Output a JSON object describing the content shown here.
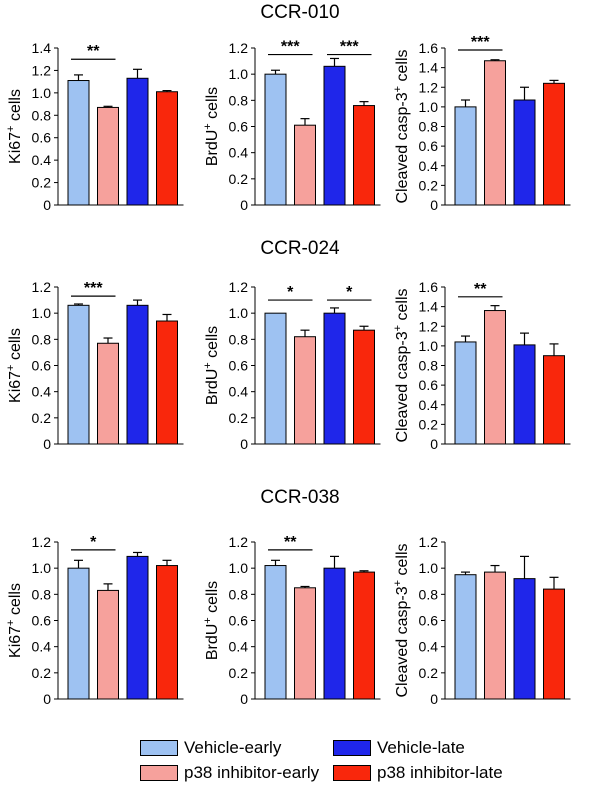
{
  "colors": {
    "vehicle_early": "#9ec2f2",
    "p38_early": "#f6a19c",
    "vehicle_late": "#1f26ea",
    "p38_late": "#f9270c"
  },
  "legend": {
    "vehicle_early": "Vehicle-early",
    "p38_early": "p38 inhibitor-early",
    "vehicle_late": "Vehicle-late",
    "p38_late": "p38 inhibitor-late"
  },
  "rows": [
    {
      "title": "CCR-010"
    },
    {
      "title": "CCR-024"
    },
    {
      "title": "CCR-038"
    }
  ],
  "chart_data": [
    {
      "type": "bar",
      "title": "CCR-010",
      "ylabel": "Ki67+ cells",
      "ylabel_main": "Ki67",
      "ylabel_sup": "+",
      "ylabel_tail": " cells",
      "ylim": [
        0,
        1.4
      ],
      "yticks": [
        "0",
        "0.2",
        "0.4",
        "0.6",
        "0.8",
        "1.0",
        "1.2",
        "1.4"
      ],
      "values": [
        1.11,
        0.87,
        1.13,
        1.01
      ],
      "errors": [
        0.05,
        0.01,
        0.08,
        0.01
      ],
      "sig": [
        {
          "from": 0,
          "to": 1,
          "label": "**",
          "y": 1.3
        }
      ]
    },
    {
      "type": "bar",
      "title": "CCR-010",
      "ylabel": "BrdU+ cells",
      "ylabel_main": "BrdU",
      "ylabel_sup": "+",
      "ylabel_tail": " cells",
      "ylim": [
        0,
        1.2
      ],
      "yticks": [
        "0",
        "0.2",
        "0.4",
        "0.6",
        "0.8",
        "1.0",
        "1.2"
      ],
      "values": [
        1.0,
        0.61,
        1.06,
        0.76
      ],
      "errors": [
        0.03,
        0.05,
        0.06,
        0.03
      ],
      "sig": [
        {
          "from": 0,
          "to": 1,
          "label": "***",
          "y": 1.15
        },
        {
          "from": 2,
          "to": 3,
          "label": "***",
          "y": 1.15
        }
      ]
    },
    {
      "type": "bar",
      "title": "CCR-010",
      "ylabel": "Cleaved casp-3+ cells",
      "ylabel_main": "Cleaved casp-3",
      "ylabel_sup": "+",
      "ylabel_tail": " cells",
      "ylim": [
        0,
        1.6
      ],
      "yticks": [
        "0",
        "0.2",
        "0.4",
        "0.6",
        "0.8",
        "1.0",
        "1.2",
        "1.4",
        "1.6"
      ],
      "values": [
        1.0,
        1.47,
        1.07,
        1.24
      ],
      "errors": [
        0.07,
        0.01,
        0.13,
        0.03
      ],
      "sig": [
        {
          "from": 0,
          "to": 1,
          "label": "***",
          "y": 1.58
        }
      ]
    },
    {
      "type": "bar",
      "title": "CCR-024",
      "ylabel": "Ki67+ cells",
      "ylabel_main": "Ki67",
      "ylabel_sup": "+",
      "ylabel_tail": " cells",
      "ylim": [
        0,
        1.2
      ],
      "yticks": [
        "0",
        "0.2",
        "0.4",
        "0.6",
        "0.8",
        "1.0",
        "1.2"
      ],
      "values": [
        1.06,
        0.77,
        1.06,
        0.94
      ],
      "errors": [
        0.01,
        0.04,
        0.04,
        0.05
      ],
      "sig": [
        {
          "from": 0,
          "to": 1,
          "label": "***",
          "y": 1.13
        }
      ]
    },
    {
      "type": "bar",
      "title": "CCR-024",
      "ylabel": "BrdU+ cells",
      "ylabel_main": "BrdU",
      "ylabel_sup": "+",
      "ylabel_tail": " cells",
      "ylim": [
        0,
        1.2
      ],
      "yticks": [
        "0",
        "0.2",
        "0.4",
        "0.6",
        "0.8",
        "1.0",
        "1.2"
      ],
      "values": [
        1.0,
        0.82,
        1.0,
        0.87
      ],
      "errors": [
        0.0,
        0.05,
        0.04,
        0.03
      ],
      "sig": [
        {
          "from": 0,
          "to": 1,
          "label": "*",
          "y": 1.1
        },
        {
          "from": 2,
          "to": 3,
          "label": "*",
          "y": 1.1
        }
      ]
    },
    {
      "type": "bar",
      "title": "CCR-024",
      "ylabel": "Cleaved casp-3+ cells",
      "ylabel_main": "Cleaved casp-3",
      "ylabel_sup": "+",
      "ylabel_tail": " cells",
      "ylim": [
        0,
        1.6
      ],
      "yticks": [
        "0",
        "0.2",
        "0.4",
        "0.6",
        "0.8",
        "1.0",
        "1.2",
        "1.4",
        "1.6"
      ],
      "values": [
        1.04,
        1.36,
        1.01,
        0.9
      ],
      "errors": [
        0.06,
        0.05,
        0.12,
        0.12
      ],
      "sig": [
        {
          "from": 0,
          "to": 1,
          "label": "**",
          "y": 1.5
        }
      ]
    },
    {
      "type": "bar",
      "title": "CCR-038",
      "ylabel": "Ki67+ cells",
      "ylabel_main": "Ki67",
      "ylabel_sup": "+",
      "ylabel_tail": " cells",
      "ylim": [
        0,
        1.2
      ],
      "yticks": [
        "0",
        "0.2",
        "0.4",
        "0.6",
        "0.8",
        "1.0",
        "1.2"
      ],
      "values": [
        1.0,
        0.83,
        1.09,
        1.02
      ],
      "errors": [
        0.06,
        0.05,
        0.03,
        0.04
      ],
      "sig": [
        {
          "from": 0,
          "to": 1,
          "label": "*",
          "y": 1.14
        }
      ]
    },
    {
      "type": "bar",
      "title": "CCR-038",
      "ylabel": "BrdU+ cells",
      "ylabel_main": "BrdU",
      "ylabel_sup": "+",
      "ylabel_tail": " cells",
      "ylim": [
        0,
        1.2
      ],
      "yticks": [
        "0",
        "0.2",
        "0.4",
        "0.6",
        "0.8",
        "1.0",
        "1.2"
      ],
      "values": [
        1.02,
        0.85,
        1.0,
        0.97
      ],
      "errors": [
        0.04,
        0.01,
        0.09,
        0.01
      ],
      "sig": [
        {
          "from": 0,
          "to": 1,
          "label": "**",
          "y": 1.14
        }
      ]
    },
    {
      "type": "bar",
      "title": "CCR-038",
      "ylabel": "Cleaved casp-3+ cells",
      "ylabel_main": "Cleaved casp-3",
      "ylabel_sup": "+",
      "ylabel_tail": " cells",
      "ylim": [
        0,
        1.2
      ],
      "yticks": [
        "0",
        "0.2",
        "0.4",
        "0.6",
        "0.8",
        "1.0",
        "1.2"
      ],
      "values": [
        0.95,
        0.97,
        0.92,
        0.84
      ],
      "errors": [
        0.02,
        0.05,
        0.17,
        0.09
      ],
      "sig": []
    }
  ]
}
